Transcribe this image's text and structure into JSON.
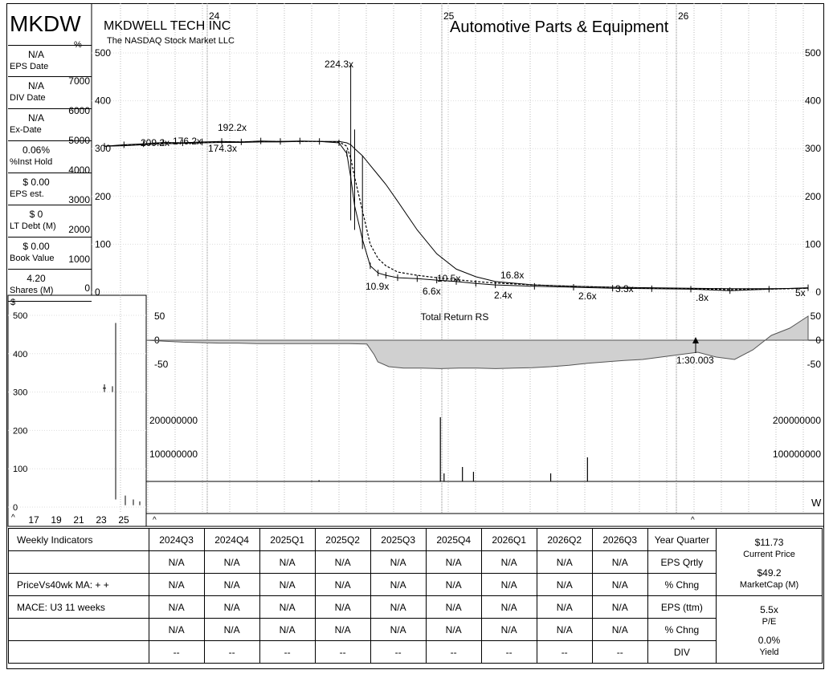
{
  "header": {
    "ticker": "MKDW",
    "company": "MKDWELL TECH INC",
    "exchange": "The NASDAQ Stock Market LLC",
    "industry": "Automotive Parts & Equipment",
    "pct_symbol": "%",
    "dollar_symbol": "$"
  },
  "side_panel": [
    {
      "value": "N/A",
      "label": "EPS Date"
    },
    {
      "value": "N/A",
      "label": "DIV Date"
    },
    {
      "value": "N/A",
      "label": "Ex-Date"
    },
    {
      "value": "0.06%",
      "label": "%Inst Hold"
    },
    {
      "value": "$ 0.00",
      "label": "EPS est."
    },
    {
      "value": "$ 0",
      "label": "LT Debt (M)"
    },
    {
      "value": "$ 0.00",
      "label": "Book Value"
    },
    {
      "value": "4.20",
      "label": "Shares (M)"
    }
  ],
  "chart_data": [
    {
      "type": "line",
      "name_panel": "price",
      "x_ticks": [
        "24",
        "25",
        "26"
      ],
      "ylim": [
        0,
        500
      ],
      "left_ticks": [
        "500",
        "400",
        "300",
        "200",
        "100",
        "0"
      ],
      "right_ticks": [
        "500",
        "400",
        "300",
        "200",
        "100",
        "0"
      ],
      "pct_ticks": [
        "7000",
        "6000",
        "5000",
        "4000",
        "3000",
        "2000",
        "1000",
        "0"
      ],
      "x": [
        0,
        5,
        10,
        15,
        20,
        25,
        30,
        35,
        40,
        45,
        50,
        55,
        60,
        62,
        63,
        64,
        66,
        68,
        70,
        72,
        75,
        80,
        85,
        90,
        95,
        100,
        110,
        120,
        130,
        140,
        150,
        160,
        170,
        180
      ],
      "price": [
        305,
        308,
        310,
        313,
        312,
        314,
        315,
        314,
        316,
        315,
        316,
        315,
        312,
        290,
        240,
        180,
        110,
        55,
        40,
        35,
        30,
        28,
        25,
        22,
        18,
        15,
        12,
        10,
        8,
        7,
        6,
        3,
        6,
        9
      ],
      "ma_short": [
        305,
        307,
        309,
        312,
        312,
        313,
        314,
        314,
        315,
        315,
        315,
        315,
        314,
        305,
        280,
        240,
        170,
        100,
        70,
        55,
        42,
        35,
        30,
        26,
        22,
        19,
        15,
        12,
        10,
        8,
        7,
        5,
        6,
        8
      ],
      "ma_long": [
        305,
        306,
        308,
        310,
        311,
        312,
        313,
        313,
        314,
        314,
        315,
        315,
        315,
        312,
        308,
        300,
        285,
        265,
        245,
        225,
        190,
        130,
        80,
        48,
        32,
        22,
        15,
        12,
        10,
        9,
        8,
        7,
        7,
        8
      ],
      "annotations": [
        "224.3x",
        "209.2x",
        "176.2x",
        "192.2x",
        "174.3x",
        "10.9x",
        "6.6x",
        "10.5x",
        "16.8x",
        "2.4x",
        "2.6x",
        "3.3x",
        ".8x",
        "5x"
      ]
    },
    {
      "type": "area",
      "name_panel": "rs",
      "title": "Total Return RS",
      "ylim": [
        -60,
        60
      ],
      "ticks": [
        "50",
        "0",
        "-50"
      ],
      "annotation": "1:30.003",
      "x": [
        0,
        5,
        10,
        15,
        20,
        25,
        30,
        35,
        40,
        45,
        50,
        55,
        60,
        62,
        63,
        66,
        70,
        75,
        80,
        85,
        90,
        95,
        100,
        105,
        110,
        115,
        120,
        125,
        130,
        135,
        140,
        145,
        150,
        155,
        160,
        165,
        170,
        175,
        180
      ],
      "values": [
        0,
        -2,
        -4,
        -5,
        -6,
        -6,
        -7,
        -7,
        -7,
        -7,
        -7,
        -7,
        -8,
        -30,
        -45,
        -55,
        -58,
        -58,
        -59,
        -58,
        -58,
        -59,
        -58,
        -57,
        -55,
        -52,
        -48,
        -45,
        -42,
        -40,
        -35,
        -30,
        -25,
        -35,
        -40,
        -20,
        10,
        25,
        50
      ]
    },
    {
      "type": "bar",
      "name_panel": "volume",
      "ticks": [
        "200000000",
        "100000000"
      ],
      "ylim": [
        0,
        250000000
      ],
      "x": [
        45,
        47,
        80,
        81,
        86,
        89,
        110,
        120
      ],
      "values": [
        2000000,
        4000000,
        200000000,
        25000000,
        45000000,
        30000000,
        25000000,
        75000000
      ],
      "w_label": "W"
    },
    {
      "type": "line",
      "name_panel": "long_term",
      "x_ticks": [
        "17",
        "19",
        "21",
        "23",
        "25"
      ],
      "ylim": [
        0,
        500
      ],
      "ticks": [
        "500",
        "400",
        "300",
        "200",
        "100",
        "0"
      ],
      "x": [
        0,
        8,
        9,
        10,
        10.5,
        11,
        12,
        13
      ],
      "values": [
        null,
        310,
        315,
        480,
        30,
        20,
        10,
        15
      ]
    }
  ],
  "indicators": {
    "columns": [
      "2024Q3",
      "2024Q4",
      "2025Q1",
      "2025Q2",
      "2025Q3",
      "2025Q4",
      "2026Q1",
      "2026Q2",
      "2026Q3"
    ],
    "rows": [
      {
        "left": "Weekly Indicators",
        "cells": [
          "2024Q3",
          "2024Q4",
          "2025Q1",
          "2025Q2",
          "2025Q3",
          "2025Q4",
          "2026Q1",
          "2026Q2",
          "2026Q3"
        ],
        "right": "Year Quarter"
      },
      {
        "left": "",
        "cells": [
          "N/A",
          "N/A",
          "N/A",
          "N/A",
          "N/A",
          "N/A",
          "N/A",
          "N/A",
          "N/A"
        ],
        "right": "EPS Qrtly"
      },
      {
        "left": "PriceVs40wk MA:  + +",
        "cells": [
          "N/A",
          "N/A",
          "N/A",
          "N/A",
          "N/A",
          "N/A",
          "N/A",
          "N/A",
          "N/A"
        ],
        "right": "% Chng"
      },
      {
        "left": "MACE: U3  11 weeks",
        "cells": [
          "N/A",
          "N/A",
          "N/A",
          "N/A",
          "N/A",
          "N/A",
          "N/A",
          "N/A",
          "N/A"
        ],
        "right": "EPS (ttm)"
      },
      {
        "left": "",
        "cells": [
          "N/A",
          "N/A",
          "N/A",
          "N/A",
          "N/A",
          "N/A",
          "N/A",
          "N/A",
          "N/A"
        ],
        "right": "% Chng"
      },
      {
        "left": "",
        "cells": [
          "--",
          "--",
          "--",
          "--",
          "--",
          "--",
          "--",
          "--",
          "--"
        ],
        "right": "DIV"
      }
    ],
    "summary": [
      {
        "value": "$11.73",
        "label": "Current Price"
      },
      {
        "value": "$49.2",
        "label": "MarketCap (M)"
      },
      {
        "value": "5.5x",
        "label": "P/E"
      },
      {
        "value": "0.0%",
        "label": "Yield"
      }
    ]
  }
}
